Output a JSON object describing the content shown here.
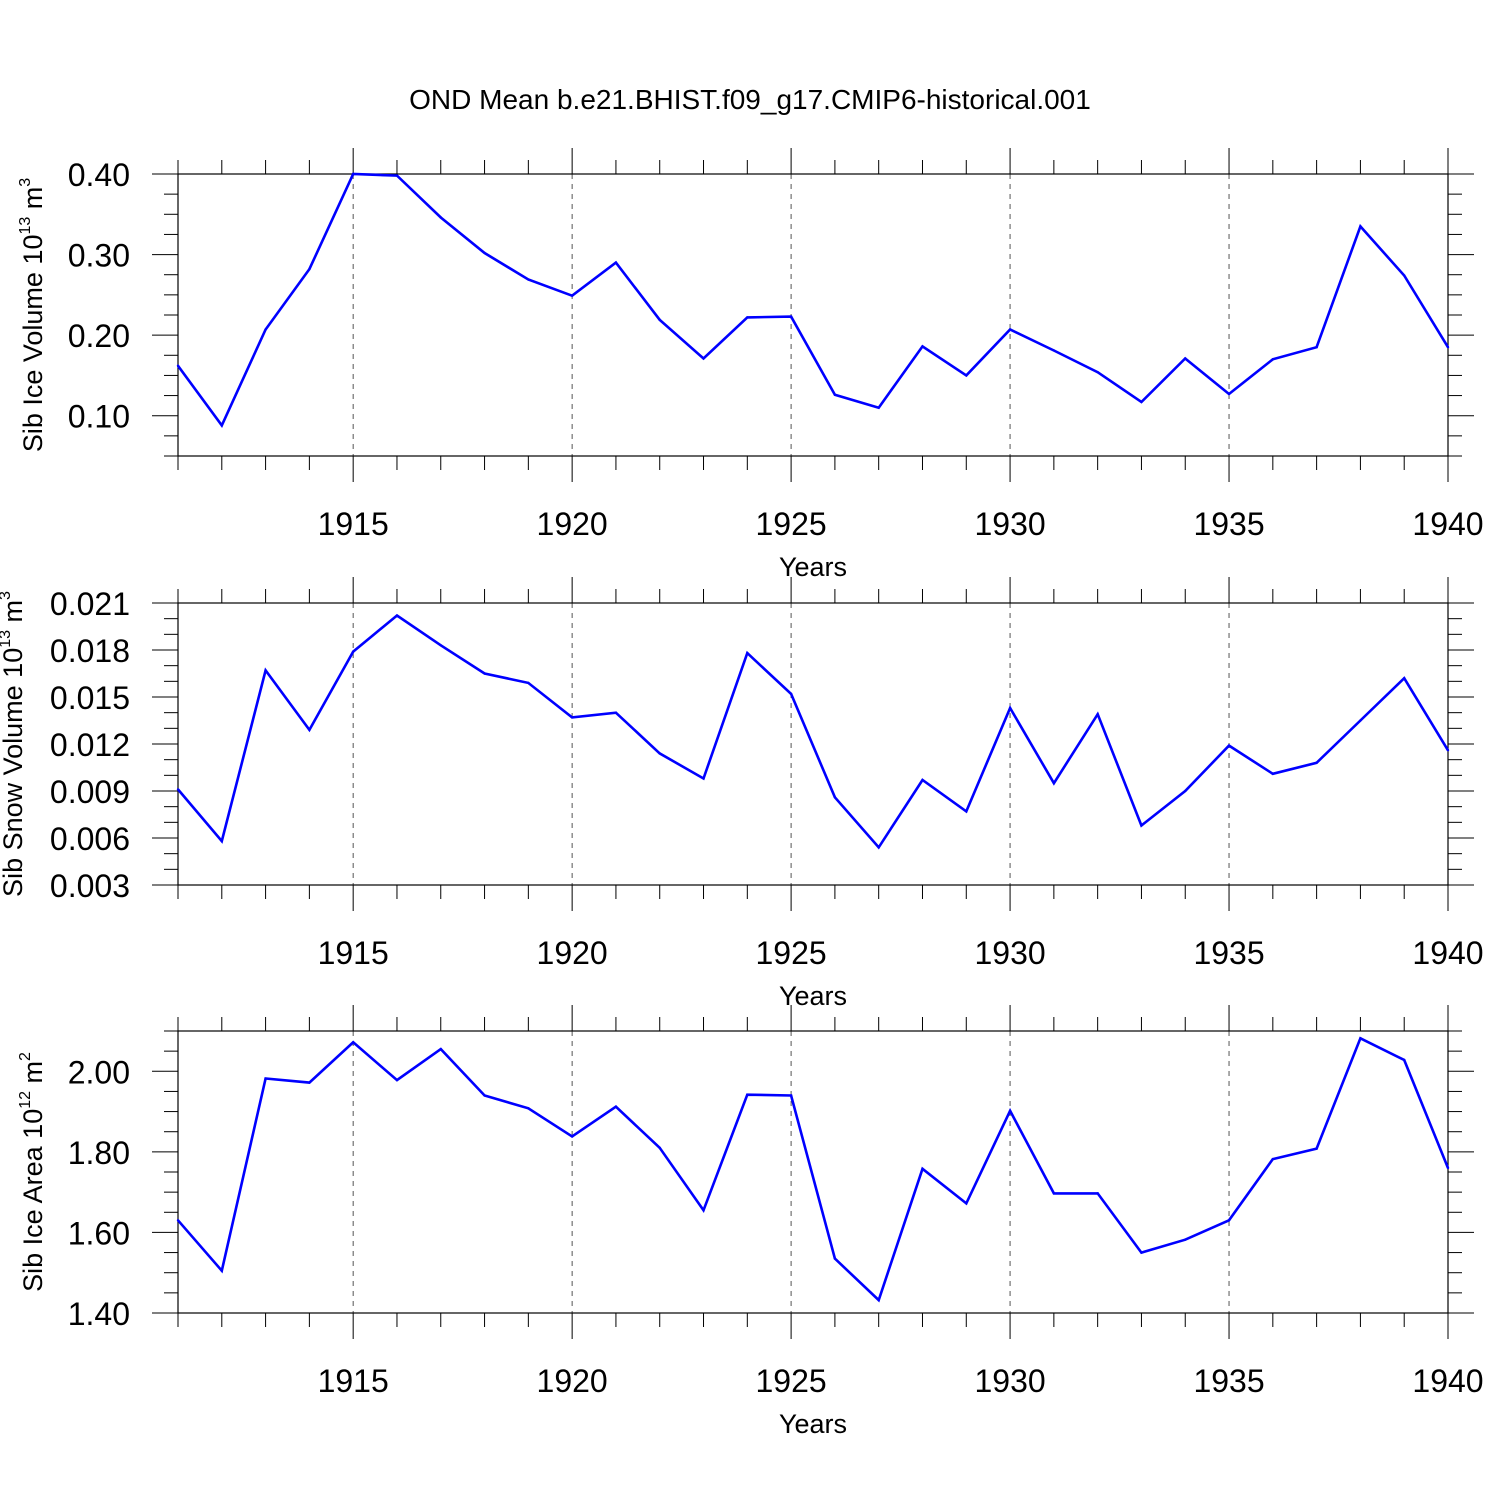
{
  "title": "OND Mean b.e21.BHIST.f09_g17.CMIP6-historical.001",
  "line_color": "#0000ff",
  "chart_data": [
    {
      "type": "line",
      "ylabel": "Sib Ice Volume 10",
      "ylabel_sup": "13",
      "ylabel_unit": " m",
      "ylabel_unit_sup": "3",
      "xlabel": "Years",
      "xlim": [
        1911,
        1940
      ],
      "ylim": [
        0.05,
        0.4
      ],
      "yticks": [
        0.1,
        0.2,
        0.3,
        0.4
      ],
      "ytick_labels": [
        "0.10",
        "0.20",
        "0.30",
        "0.40"
      ],
      "yminor": 0.025,
      "xticks": [
        1915,
        1920,
        1925,
        1930,
        1935,
        1940
      ],
      "xtick_labels": [
        "1915",
        "1920",
        "1925",
        "1930",
        "1935",
        "1940"
      ],
      "grid": "vertical-dashed",
      "x": [
        1911,
        1912,
        1913,
        1914,
        1915,
        1916,
        1917,
        1918,
        1919,
        1920,
        1921,
        1922,
        1923,
        1924,
        1925,
        1926,
        1927,
        1928,
        1929,
        1930,
        1931,
        1932,
        1933,
        1934,
        1935,
        1936,
        1937,
        1938,
        1939,
        1940
      ],
      "values": [
        0.162,
        0.088,
        0.207,
        0.282,
        0.4,
        0.398,
        0.346,
        0.302,
        0.269,
        0.249,
        0.29,
        0.219,
        0.171,
        0.222,
        0.223,
        0.126,
        0.11,
        0.186,
        0.15,
        0.207,
        0.181,
        0.154,
        0.117,
        0.171,
        0.127,
        0.17,
        0.185,
        0.335,
        0.274,
        0.185
      ]
    },
    {
      "type": "line",
      "ylabel": "Sib Snow Volume 10",
      "ylabel_sup": "13",
      "ylabel_unit": " m",
      "ylabel_unit_sup": "3",
      "xlabel": "Years",
      "xlim": [
        1911,
        1940
      ],
      "ylim": [
        0.003,
        0.021
      ],
      "yticks": [
        0.003,
        0.006,
        0.009,
        0.012,
        0.015,
        0.018,
        0.021
      ],
      "ytick_labels": [
        "0.003",
        "0.006",
        "0.009",
        "0.012",
        "0.015",
        "0.018",
        "0.021"
      ],
      "yminor": 0.001,
      "xticks": [
        1915,
        1920,
        1925,
        1930,
        1935,
        1940
      ],
      "xtick_labels": [
        "1915",
        "1920",
        "1925",
        "1930",
        "1935",
        "1940"
      ],
      "grid": "vertical-dashed",
      "x": [
        1911,
        1912,
        1913,
        1914,
        1915,
        1916,
        1917,
        1918,
        1919,
        1920,
        1921,
        1922,
        1923,
        1924,
        1925,
        1926,
        1927,
        1928,
        1929,
        1930,
        1931,
        1932,
        1933,
        1934,
        1935,
        1936,
        1937,
        1938,
        1939,
        1940
      ],
      "values": [
        0.0091,
        0.0058,
        0.0167,
        0.0129,
        0.0179,
        0.0202,
        0.0183,
        0.0165,
        0.0159,
        0.0137,
        0.014,
        0.0114,
        0.0098,
        0.0178,
        0.0152,
        0.0086,
        0.0054,
        0.0097,
        0.0077,
        0.0143,
        0.0095,
        0.0139,
        0.0068,
        0.009,
        0.0119,
        0.0101,
        0.0108,
        0.0135,
        0.0162,
        0.0116
      ]
    },
    {
      "type": "line",
      "ylabel": "Sib Ice Area 10",
      "ylabel_sup": "12",
      "ylabel_unit": " m",
      "ylabel_unit_sup": "2",
      "xlabel": "Years",
      "xlim": [
        1911,
        1940
      ],
      "ylim": [
        1.4,
        2.1
      ],
      "yticks": [
        1.4,
        1.6,
        1.8,
        2.0
      ],
      "ytick_labels": [
        "1.40",
        "1.60",
        "1.80",
        "2.00"
      ],
      "yminor": 0.05,
      "xticks": [
        1915,
        1920,
        1925,
        1930,
        1935,
        1940
      ],
      "xtick_labels": [
        "1915",
        "1920",
        "1925",
        "1930",
        "1935",
        "1940"
      ],
      "grid": "vertical-dashed",
      "x": [
        1911,
        1912,
        1913,
        1914,
        1915,
        1916,
        1917,
        1918,
        1919,
        1920,
        1921,
        1922,
        1923,
        1924,
        1925,
        1926,
        1927,
        1928,
        1929,
        1930,
        1931,
        1932,
        1933,
        1934,
        1935,
        1936,
        1937,
        1938,
        1939,
        1940
      ],
      "values": [
        1.63,
        1.505,
        1.982,
        1.972,
        2.072,
        1.978,
        2.055,
        1.94,
        1.908,
        1.838,
        1.912,
        1.81,
        1.655,
        1.942,
        1.94,
        1.535,
        1.432,
        1.758,
        1.672,
        1.902,
        1.697,
        1.697,
        1.55,
        1.582,
        1.63,
        1.782,
        1.808,
        2.082,
        2.028,
        1.76
      ]
    }
  ]
}
